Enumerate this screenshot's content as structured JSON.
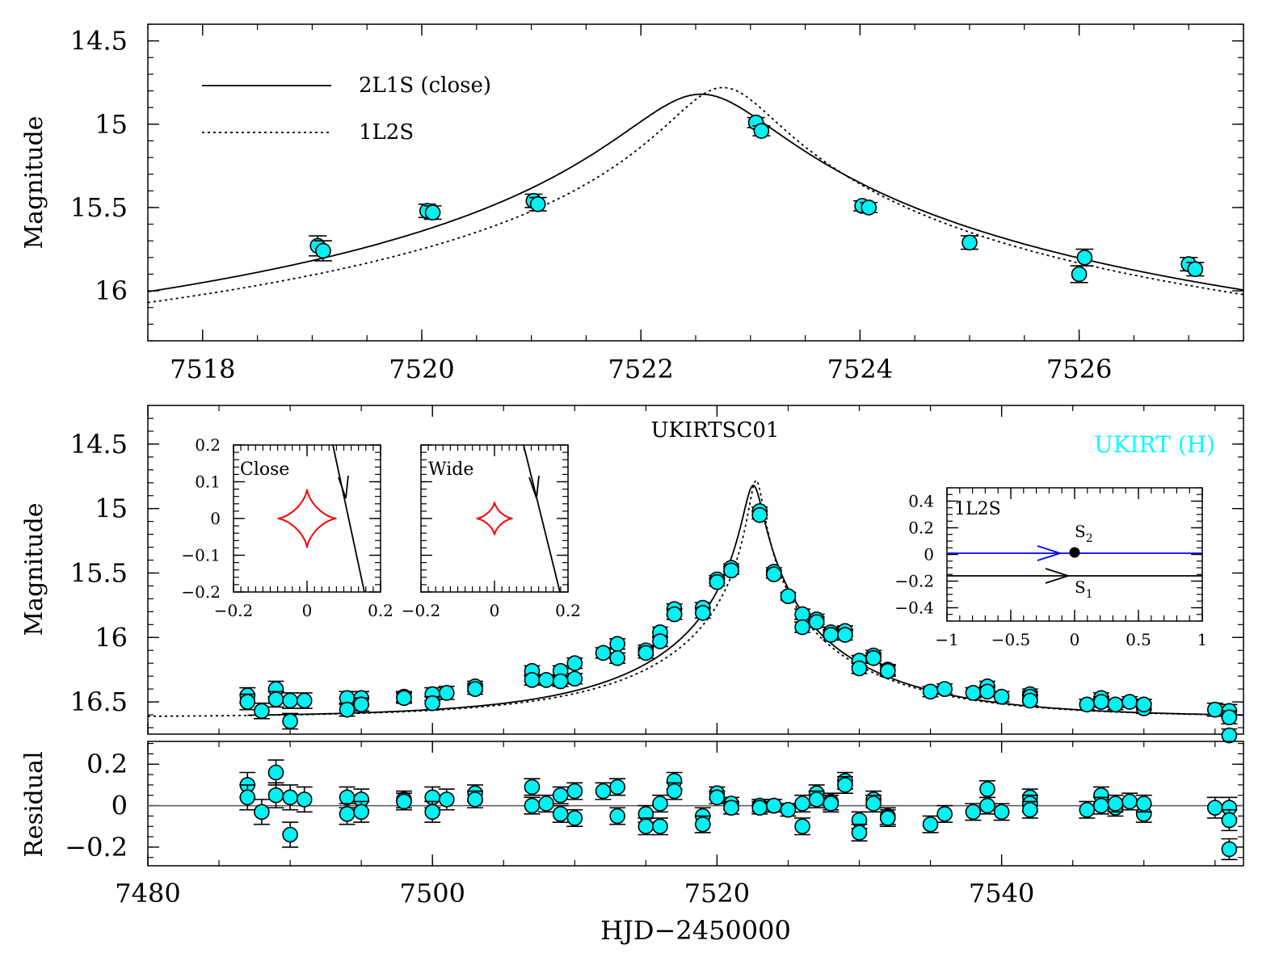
{
  "chart_data": [
    {
      "panel": "top",
      "type": "line",
      "ylabel": "Magnitude",
      "xlim": [
        7517.5,
        7527.5
      ],
      "ylim": [
        16.3,
        14.4
      ],
      "yinverted": true,
      "xticks": [
        "7518",
        "7520",
        "7522",
        "7524",
        "7526"
      ],
      "yticks": [
        "14.5",
        "15",
        "15.5",
        "16"
      ],
      "legend": [
        {
          "name": "2L1S (close)",
          "style": "solid"
        },
        {
          "name": "1L2S",
          "style": "dotted"
        }
      ],
      "points": [
        {
          "x": 7519.05,
          "y": 15.73,
          "err": 0.06
        },
        {
          "x": 7519.1,
          "y": 15.76,
          "err": 0.06
        },
        {
          "x": 7520.05,
          "y": 15.52,
          "err": 0.04
        },
        {
          "x": 7520.1,
          "y": 15.53,
          "err": 0.04
        },
        {
          "x": 7521.02,
          "y": 15.46,
          "err": 0.04
        },
        {
          "x": 7521.06,
          "y": 15.48,
          "err": 0.04
        },
        {
          "x": 7523.05,
          "y": 14.99,
          "err": 0.03
        },
        {
          "x": 7523.1,
          "y": 15.04,
          "err": 0.03
        },
        {
          "x": 7524.02,
          "y": 15.49,
          "err": 0.03
        },
        {
          "x": 7524.08,
          "y": 15.5,
          "err": 0.03
        },
        {
          "x": 7525.0,
          "y": 15.71,
          "err": 0.04
        },
        {
          "x": 7526.0,
          "y": 15.9,
          "err": 0.05
        },
        {
          "x": 7526.05,
          "y": 15.8,
          "err": 0.05
        },
        {
          "x": 7527.0,
          "y": 15.84,
          "err": 0.04
        },
        {
          "x": 7527.06,
          "y": 15.87,
          "err": 0.04
        }
      ]
    },
    {
      "panel": "middle",
      "type": "line",
      "title": "UKIRTSC01",
      "series_label": "UKIRT (H)",
      "series_color": "#00ffff",
      "ylabel": "Magnitude",
      "xlim": [
        7480,
        7557
      ],
      "ylim": [
        16.75,
        14.2
      ],
      "yinverted": true,
      "yticks": [
        "14.5",
        "15",
        "15.5",
        "16",
        "16.5"
      ],
      "points": [
        {
          "x": 7487,
          "y": 16.45,
          "err": 0.06
        },
        {
          "x": 7487,
          "y": 16.5,
          "err": 0.06
        },
        {
          "x": 7488,
          "y": 16.57,
          "err": 0.06
        },
        {
          "x": 7489,
          "y": 16.4,
          "err": 0.06
        },
        {
          "x": 7489,
          "y": 16.48,
          "err": 0.06
        },
        {
          "x": 7490,
          "y": 16.65,
          "err": 0.06
        },
        {
          "x": 7490,
          "y": 16.49,
          "err": 0.06
        },
        {
          "x": 7491,
          "y": 16.49,
          "err": 0.06
        },
        {
          "x": 7494,
          "y": 16.47,
          "err": 0.05
        },
        {
          "x": 7494,
          "y": 16.56,
          "err": 0.05
        },
        {
          "x": 7495,
          "y": 16.47,
          "err": 0.05
        },
        {
          "x": 7495,
          "y": 16.52,
          "err": 0.05
        },
        {
          "x": 7498,
          "y": 16.46,
          "err": 0.04
        },
        {
          "x": 7498,
          "y": 16.47,
          "err": 0.04
        },
        {
          "x": 7500,
          "y": 16.44,
          "err": 0.05
        },
        {
          "x": 7500,
          "y": 16.51,
          "err": 0.05
        },
        {
          "x": 7501,
          "y": 16.43,
          "err": 0.05
        },
        {
          "x": 7503,
          "y": 16.38,
          "err": 0.04
        },
        {
          "x": 7503,
          "y": 16.4,
          "err": 0.04
        },
        {
          "x": 7507,
          "y": 16.26,
          "err": 0.04
        },
        {
          "x": 7507,
          "y": 16.33,
          "err": 0.04
        },
        {
          "x": 7508,
          "y": 16.33,
          "err": 0.04
        },
        {
          "x": 7509,
          "y": 16.26,
          "err": 0.04
        },
        {
          "x": 7509,
          "y": 16.34,
          "err": 0.04
        },
        {
          "x": 7510,
          "y": 16.2,
          "err": 0.04
        },
        {
          "x": 7510,
          "y": 16.32,
          "err": 0.04
        },
        {
          "x": 7512,
          "y": 16.12,
          "err": 0.04
        },
        {
          "x": 7513,
          "y": 16.05,
          "err": 0.04
        },
        {
          "x": 7513,
          "y": 16.16,
          "err": 0.04
        },
        {
          "x": 7515,
          "y": 16.1,
          "err": 0.04
        },
        {
          "x": 7515,
          "y": 16.12,
          "err": 0.04
        },
        {
          "x": 7516,
          "y": 15.96,
          "err": 0.04
        },
        {
          "x": 7516,
          "y": 16.03,
          "err": 0.04
        },
        {
          "x": 7517,
          "y": 15.78,
          "err": 0.04
        },
        {
          "x": 7517,
          "y": 15.82,
          "err": 0.04
        },
        {
          "x": 7519,
          "y": 15.77,
          "err": 0.04
        },
        {
          "x": 7519,
          "y": 15.81,
          "err": 0.04
        },
        {
          "x": 7520,
          "y": 15.55,
          "err": 0.03
        },
        {
          "x": 7520,
          "y": 15.57,
          "err": 0.03
        },
        {
          "x": 7521,
          "y": 15.46,
          "err": 0.03
        },
        {
          "x": 7521,
          "y": 15.48,
          "err": 0.03
        },
        {
          "x": 7523,
          "y": 15.02,
          "err": 0.03
        },
        {
          "x": 7523,
          "y": 15.05,
          "err": 0.03
        },
        {
          "x": 7524,
          "y": 15.49,
          "err": 0.03
        },
        {
          "x": 7524,
          "y": 15.51,
          "err": 0.03
        },
        {
          "x": 7525,
          "y": 15.68,
          "err": 0.03
        },
        {
          "x": 7526,
          "y": 15.82,
          "err": 0.04
        },
        {
          "x": 7526,
          "y": 15.92,
          "err": 0.04
        },
        {
          "x": 7527,
          "y": 15.86,
          "err": 0.04
        },
        {
          "x": 7527,
          "y": 15.88,
          "err": 0.04
        },
        {
          "x": 7528,
          "y": 15.96,
          "err": 0.04
        },
        {
          "x": 7528,
          "y": 15.98,
          "err": 0.04
        },
        {
          "x": 7529,
          "y": 15.95,
          "err": 0.04
        },
        {
          "x": 7529,
          "y": 15.98,
          "err": 0.04
        },
        {
          "x": 7530,
          "y": 16.18,
          "err": 0.04
        },
        {
          "x": 7530,
          "y": 16.24,
          "err": 0.04
        },
        {
          "x": 7531,
          "y": 16.14,
          "err": 0.04
        },
        {
          "x": 7531,
          "y": 16.16,
          "err": 0.04
        },
        {
          "x": 7532,
          "y": 16.25,
          "err": 0.04
        },
        {
          "x": 7532,
          "y": 16.26,
          "err": 0.04
        },
        {
          "x": 7535,
          "y": 16.42,
          "err": 0.04
        },
        {
          "x": 7536,
          "y": 16.4,
          "err": 0.04
        },
        {
          "x": 7538,
          "y": 16.43,
          "err": 0.04
        },
        {
          "x": 7539,
          "y": 16.38,
          "err": 0.04
        },
        {
          "x": 7539,
          "y": 16.42,
          "err": 0.04
        },
        {
          "x": 7540,
          "y": 16.46,
          "err": 0.04
        },
        {
          "x": 7542,
          "y": 16.44,
          "err": 0.04
        },
        {
          "x": 7542,
          "y": 16.46,
          "err": 0.04
        },
        {
          "x": 7542,
          "y": 16.49,
          "err": 0.04
        },
        {
          "x": 7546,
          "y": 16.52,
          "err": 0.04
        },
        {
          "x": 7547,
          "y": 16.47,
          "err": 0.04
        },
        {
          "x": 7547,
          "y": 16.5,
          "err": 0.04
        },
        {
          "x": 7548,
          "y": 16.52,
          "err": 0.04
        },
        {
          "x": 7549,
          "y": 16.5,
          "err": 0.04
        },
        {
          "x": 7550,
          "y": 16.55,
          "err": 0.04
        },
        {
          "x": 7550,
          "y": 16.52,
          "err": 0.04
        },
        {
          "x": 7555,
          "y": 16.56,
          "err": 0.05
        },
        {
          "x": 7556,
          "y": 16.57,
          "err": 0.05
        },
        {
          "x": 7556,
          "y": 16.62,
          "err": 0.05
        },
        {
          "x": 7556,
          "y": 16.76,
          "err": 0.05
        }
      ]
    },
    {
      "panel": "residual",
      "type": "scatter",
      "ylabel": "Residual",
      "xlabel": "HJD−2450000",
      "xlim": [
        7480,
        7557
      ],
      "ylim": [
        -0.29,
        0.31
      ],
      "xticks": [
        "7480",
        "7500",
        "7520",
        "7540"
      ],
      "yticks": [
        "0.2",
        "0",
        "−0.2"
      ],
      "points": [
        {
          "x": 7487,
          "y": 0.1,
          "err": 0.06
        },
        {
          "x": 7487,
          "y": 0.04,
          "err": 0.06
        },
        {
          "x": 7488,
          "y": -0.03,
          "err": 0.06
        },
        {
          "x": 7489,
          "y": 0.16,
          "err": 0.06
        },
        {
          "x": 7489,
          "y": 0.05,
          "err": 0.06
        },
        {
          "x": 7490,
          "y": -0.14,
          "err": 0.06
        },
        {
          "x": 7490,
          "y": 0.04,
          "err": 0.06
        },
        {
          "x": 7491,
          "y": 0.03,
          "err": 0.06
        },
        {
          "x": 7494,
          "y": 0.04,
          "err": 0.05
        },
        {
          "x": 7494,
          "y": -0.04,
          "err": 0.05
        },
        {
          "x": 7495,
          "y": 0.03,
          "err": 0.05
        },
        {
          "x": 7495,
          "y": -0.03,
          "err": 0.05
        },
        {
          "x": 7498,
          "y": 0.03,
          "err": 0.04
        },
        {
          "x": 7498,
          "y": 0.02,
          "err": 0.04
        },
        {
          "x": 7500,
          "y": 0.04,
          "err": 0.05
        },
        {
          "x": 7500,
          "y": -0.03,
          "err": 0.05
        },
        {
          "x": 7501,
          "y": 0.03,
          "err": 0.05
        },
        {
          "x": 7503,
          "y": 0.06,
          "err": 0.04
        },
        {
          "x": 7503,
          "y": 0.03,
          "err": 0.04
        },
        {
          "x": 7507,
          "y": 0.09,
          "err": 0.04
        },
        {
          "x": 7507,
          "y": 0.0,
          "err": 0.04
        },
        {
          "x": 7508,
          "y": 0.01,
          "err": 0.04
        },
        {
          "x": 7509,
          "y": 0.05,
          "err": 0.04
        },
        {
          "x": 7509,
          "y": -0.04,
          "err": 0.04
        },
        {
          "x": 7510,
          "y": 0.07,
          "err": 0.04
        },
        {
          "x": 7510,
          "y": -0.06,
          "err": 0.04
        },
        {
          "x": 7512,
          "y": 0.07,
          "err": 0.04
        },
        {
          "x": 7513,
          "y": 0.09,
          "err": 0.04
        },
        {
          "x": 7513,
          "y": -0.05,
          "err": 0.04
        },
        {
          "x": 7515,
          "y": -0.04,
          "err": 0.04
        },
        {
          "x": 7515,
          "y": -0.1,
          "err": 0.04
        },
        {
          "x": 7516,
          "y": 0.01,
          "err": 0.04
        },
        {
          "x": 7516,
          "y": -0.1,
          "err": 0.04
        },
        {
          "x": 7517,
          "y": 0.12,
          "err": 0.04
        },
        {
          "x": 7517,
          "y": 0.07,
          "err": 0.04
        },
        {
          "x": 7519,
          "y": -0.05,
          "err": 0.04
        },
        {
          "x": 7519,
          "y": -0.09,
          "err": 0.04
        },
        {
          "x": 7520,
          "y": 0.06,
          "err": 0.03
        },
        {
          "x": 7520,
          "y": 0.04,
          "err": 0.03
        },
        {
          "x": 7521,
          "y": 0.01,
          "err": 0.03
        },
        {
          "x": 7521,
          "y": -0.01,
          "err": 0.03
        },
        {
          "x": 7523,
          "y": 0.0,
          "err": 0.03
        },
        {
          "x": 7523,
          "y": -0.01,
          "err": 0.03
        },
        {
          "x": 7524,
          "y": 0.0,
          "err": 0.03
        },
        {
          "x": 7524,
          "y": 0.0,
          "err": 0.03
        },
        {
          "x": 7525,
          "y": -0.02,
          "err": 0.03
        },
        {
          "x": 7526,
          "y": 0.01,
          "err": 0.04
        },
        {
          "x": 7526,
          "y": -0.1,
          "err": 0.04
        },
        {
          "x": 7527,
          "y": 0.06,
          "err": 0.04
        },
        {
          "x": 7527,
          "y": 0.03,
          "err": 0.04
        },
        {
          "x": 7528,
          "y": 0.02,
          "err": 0.04
        },
        {
          "x": 7528,
          "y": 0.01,
          "err": 0.04
        },
        {
          "x": 7529,
          "y": 0.12,
          "err": 0.04
        },
        {
          "x": 7529,
          "y": 0.1,
          "err": 0.04
        },
        {
          "x": 7530,
          "y": -0.07,
          "err": 0.04
        },
        {
          "x": 7530,
          "y": -0.13,
          "err": 0.04
        },
        {
          "x": 7531,
          "y": 0.03,
          "err": 0.04
        },
        {
          "x": 7531,
          "y": 0.01,
          "err": 0.04
        },
        {
          "x": 7532,
          "y": -0.05,
          "err": 0.04
        },
        {
          "x": 7532,
          "y": -0.06,
          "err": 0.04
        },
        {
          "x": 7535,
          "y": -0.09,
          "err": 0.04
        },
        {
          "x": 7536,
          "y": -0.04,
          "err": 0.04
        },
        {
          "x": 7538,
          "y": -0.03,
          "err": 0.04
        },
        {
          "x": 7539,
          "y": 0.08,
          "err": 0.04
        },
        {
          "x": 7539,
          "y": 0.0,
          "err": 0.04
        },
        {
          "x": 7540,
          "y": -0.03,
          "err": 0.04
        },
        {
          "x": 7542,
          "y": 0.04,
          "err": 0.04
        },
        {
          "x": 7542,
          "y": 0.01,
          "err": 0.04
        },
        {
          "x": 7542,
          "y": -0.02,
          "err": 0.04
        },
        {
          "x": 7546,
          "y": -0.02,
          "err": 0.04
        },
        {
          "x": 7547,
          "y": 0.05,
          "err": 0.04
        },
        {
          "x": 7547,
          "y": 0.0,
          "err": 0.04
        },
        {
          "x": 7548,
          "y": -0.01,
          "err": 0.04
        },
        {
          "x": 7548,
          "y": 0.01,
          "err": 0.04
        },
        {
          "x": 7549,
          "y": 0.02,
          "err": 0.04
        },
        {
          "x": 7550,
          "y": -0.04,
          "err": 0.04
        },
        {
          "x": 7550,
          "y": 0.01,
          "err": 0.04
        },
        {
          "x": 7555,
          "y": -0.01,
          "err": 0.05
        },
        {
          "x": 7556,
          "y": -0.01,
          "err": 0.05
        },
        {
          "x": 7556,
          "y": -0.07,
          "err": 0.05
        },
        {
          "x": 7556,
          "y": -0.21,
          "err": 0.05
        }
      ]
    }
  ],
  "model": {
    "t0_2l1s": 7522.55,
    "t0_1l2s": 7522.75,
    "base_mag": 16.62,
    "peak_mag_2l1s": 14.82,
    "peak_mag_1l2s": 14.78,
    "te_days": 14,
    "colors": {
      "point_fill": "#00f2f2",
      "caustic": "#ff0000",
      "source2_track": "#0000ff",
      "axes": "#000000"
    }
  },
  "insets": [
    {
      "label": "Close",
      "xlim": [
        -0.2,
        0.2
      ],
      "ylim": [
        -0.2,
        0.2
      ],
      "xticks": [
        "−0.2",
        "0",
        "0.2"
      ],
      "yticks": [
        "0.2",
        "0.1",
        "0",
        "−0.1",
        "−0.2"
      ],
      "caustic_size": 0.08
    },
    {
      "label": "Wide",
      "xlim": [
        -0.2,
        0.2
      ],
      "ylim": [
        -0.2,
        0.2
      ],
      "xticks": [
        "−0.2",
        "0",
        "0.2"
      ],
      "caustic_size": 0.045
    },
    {
      "label": "1L2S",
      "xlim": [
        -1,
        1
      ],
      "ylim": [
        -0.5,
        0.5
      ],
      "xticks": [
        "−1",
        "−0.5",
        "0",
        "0.5",
        "1"
      ],
      "yticks": [
        "0.4",
        "0.2",
        "0",
        "−0.2",
        "−0.4"
      ],
      "source_labels": [
        "S",
        "S"
      ],
      "source_subscripts": [
        "2",
        "1"
      ],
      "source_y": [
        0.0,
        -0.2
      ]
    }
  ]
}
